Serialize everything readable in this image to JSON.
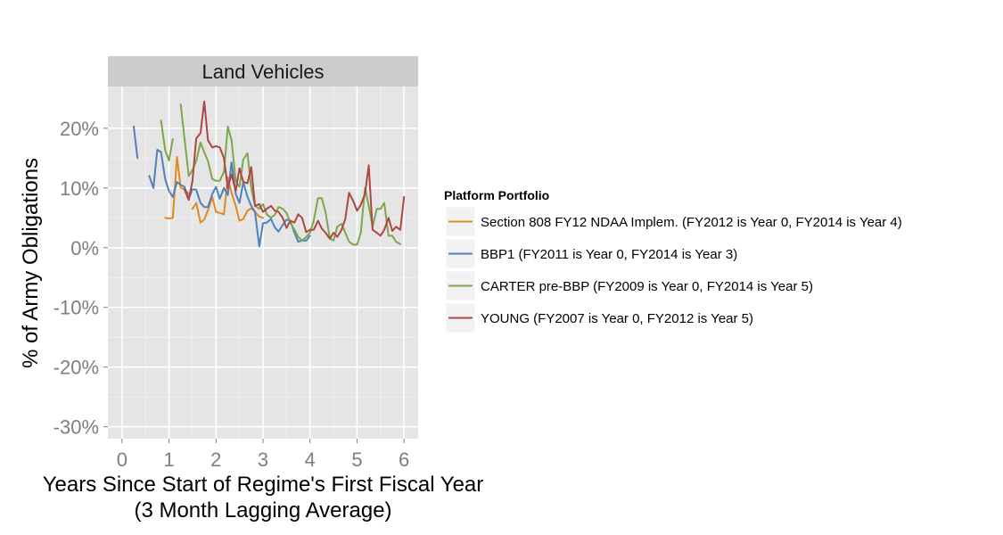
{
  "chart_data": {
    "type": "line",
    "facet_title": "Land Vehicles",
    "xlabel": "Years Since Start of Regime's First Fiscal Year",
    "xlabel_sub": "(3 Month Lagging Average)",
    "ylabel": "% of Army Obligations",
    "xlim": [
      -0.3,
      6.3
    ],
    "ylim": [
      -0.32,
      0.27
    ],
    "x_ticks": [
      0,
      1,
      2,
      3,
      4,
      5,
      6
    ],
    "x_tick_labels": [
      "0",
      "1",
      "2",
      "3",
      "4",
      "5",
      "6"
    ],
    "y_ticks": [
      0.2,
      0.1,
      0.0,
      -0.1,
      -0.2,
      -0.3
    ],
    "y_tick_labels": [
      "20%",
      "10%",
      "0%",
      "-10%",
      "-20%",
      "-30%"
    ],
    "grid": true,
    "legend": {
      "title": "Platform Portfolio",
      "position": "right"
    },
    "series": [
      {
        "name": "Section 808 FY12 NDAA Implem. (FY2012 is Year 0, FY2014 is Year 4)",
        "color": "#e08a1e",
        "segments": [
          [
            [
              0.92,
              0.05
            ],
            [
              1.0,
              0.049
            ],
            [
              1.08,
              0.05
            ],
            [
              1.17,
              0.152
            ],
            [
              1.25,
              0.1
            ],
            [
              1.33,
              0.098
            ],
            [
              1.42,
              0.09
            ]
          ],
          [
            [
              1.5,
              0.065
            ],
            [
              1.58,
              0.075
            ],
            [
              1.67,
              0.042
            ],
            [
              1.75,
              0.047
            ],
            [
              1.83,
              0.063
            ],
            [
              1.92,
              0.085
            ],
            [
              2.0,
              0.06
            ],
            [
              2.08,
              0.058
            ],
            [
              2.17,
              0.056
            ],
            [
              2.25,
              0.118
            ],
            [
              2.33,
              0.092
            ],
            [
              2.42,
              0.07
            ],
            [
              2.5,
              0.045
            ],
            [
              2.58,
              0.048
            ],
            [
              2.67,
              0.062
            ],
            [
              2.75,
              0.066
            ],
            [
              2.83,
              0.06
            ],
            [
              2.92,
              0.052
            ],
            [
              3.0,
              0.05
            ]
          ]
        ]
      },
      {
        "name": "BBP1 (FY2011 is Year 0, FY2014 is Year 3)",
        "color": "#4f81bd",
        "segments": [
          [
            [
              0.25,
              0.203
            ],
            [
              0.33,
              0.15
            ]
          ],
          [
            [
              0.58,
              0.12
            ],
            [
              0.67,
              0.1
            ],
            [
              0.75,
              0.164
            ],
            [
              0.83,
              0.16
            ],
            [
              0.92,
              0.115
            ],
            [
              1.0,
              0.095
            ],
            [
              1.08,
              0.085
            ],
            [
              1.17,
              0.11
            ],
            [
              1.25,
              0.105
            ],
            [
              1.33,
              0.102
            ],
            [
              1.42,
              0.082
            ],
            [
              1.5,
              0.098
            ],
            [
              1.58,
              0.097
            ],
            [
              1.67,
              0.075
            ],
            [
              1.75,
              0.068
            ],
            [
              1.83,
              0.068
            ],
            [
              1.92,
              0.09
            ],
            [
              2.0,
              0.102
            ],
            [
              2.08,
              0.082
            ],
            [
              2.17,
              0.1
            ],
            [
              2.25,
              0.088
            ],
            [
              2.33,
              0.143
            ],
            [
              2.42,
              0.09
            ],
            [
              2.5,
              0.075
            ],
            [
              2.58,
              0.11
            ],
            [
              2.67,
              0.085
            ],
            [
              2.75,
              0.07
            ],
            [
              2.83,
              0.06
            ],
            [
              2.92,
              0.002
            ],
            [
              3.0,
              0.041
            ],
            [
              3.08,
              0.042
            ],
            [
              3.17,
              0.048
            ],
            [
              3.25,
              0.034
            ],
            [
              3.33,
              0.027
            ],
            [
              3.42,
              0.038
            ],
            [
              3.5,
              0.047
            ],
            [
              3.58,
              0.045
            ],
            [
              3.67,
              0.025
            ],
            [
              3.75,
              0.01
            ],
            [
              3.83,
              0.012
            ],
            [
              3.92,
              0.012
            ],
            [
              4.0,
              0.02
            ]
          ]
        ]
      },
      {
        "name": "CARTER pre-BBP (FY2009 is Year 0, FY2014 is Year 5)",
        "color": "#7ea64a",
        "segments": [
          [
            [
              0.83,
              0.213
            ],
            [
              0.92,
              0.163
            ],
            [
              1.0,
              0.146
            ],
            [
              1.08,
              0.182
            ]
          ],
          [
            [
              1.25,
              0.24
            ],
            [
              1.33,
              0.183
            ],
            [
              1.42,
              0.12
            ],
            [
              1.5,
              0.13
            ],
            [
              1.58,
              0.145
            ],
            [
              1.67,
              0.176
            ],
            [
              1.75,
              0.16
            ],
            [
              1.83,
              0.145
            ],
            [
              1.92,
              0.115
            ],
            [
              2.0,
              0.112
            ],
            [
              2.08,
              0.112
            ],
            [
              2.17,
              0.127
            ],
            [
              2.25,
              0.203
            ],
            [
              2.33,
              0.18
            ],
            [
              2.42,
              0.112
            ],
            [
              2.5,
              0.102
            ],
            [
              2.58,
              0.148
            ],
            [
              2.67,
              0.158
            ],
            [
              2.75,
              0.1
            ],
            [
              2.83,
              0.07
            ],
            [
              2.92,
              0.065
            ],
            [
              3.0,
              0.073
            ],
            [
              3.08,
              0.056
            ],
            [
              3.17,
              0.05
            ],
            [
              3.25,
              0.055
            ],
            [
              3.33,
              0.068
            ],
            [
              3.42,
              0.065
            ],
            [
              3.5,
              0.058
            ],
            [
              3.58,
              0.042
            ],
            [
              3.67,
              0.03
            ],
            [
              3.75,
              0.018
            ],
            [
              3.83,
              0.012
            ],
            [
              3.92,
              0.018
            ],
            [
              4.0,
              0.025
            ],
            [
              4.08,
              0.045
            ],
            [
              4.17,
              0.083
            ],
            [
              4.25,
              0.083
            ],
            [
              4.33,
              0.06
            ],
            [
              4.42,
              0.015
            ],
            [
              4.5,
              0.012
            ],
            [
              4.58,
              0.035
            ],
            [
              4.67,
              0.04
            ],
            [
              4.75,
              0.025
            ],
            [
              4.83,
              0.01
            ],
            [
              4.92,
              0.005
            ],
            [
              5.0,
              0.005
            ],
            [
              5.08,
              0.025
            ],
            [
              5.17,
              0.1
            ],
            [
              5.25,
              0.07
            ],
            [
              5.33,
              0.035
            ],
            [
              5.42,
              0.065
            ],
            [
              5.5,
              0.065
            ],
            [
              5.58,
              0.075
            ],
            [
              5.67,
              0.02
            ],
            [
              5.75,
              0.02
            ],
            [
              5.83,
              0.01
            ],
            [
              5.92,
              0.006
            ]
          ]
        ]
      },
      {
        "name": "YOUNG (FY2007 is Year 0, FY2012 is Year 5)",
        "color": "#b04545",
        "segments": [
          [
            [
              1.33,
              0.098
            ],
            [
              1.42,
              0.08
            ],
            [
              1.5,
              0.112
            ],
            [
              1.58,
              0.183
            ],
            [
              1.67,
              0.192
            ],
            [
              1.75,
              0.245
            ],
            [
              1.83,
              0.18
            ],
            [
              1.92,
              0.168
            ],
            [
              2.0,
              0.17
            ],
            [
              2.08,
              0.168
            ],
            [
              2.17,
              0.15
            ],
            [
              2.25,
              0.1
            ],
            [
              2.33,
              0.123
            ],
            [
              2.42,
              0.095
            ],
            [
              2.5,
              0.133
            ],
            [
              2.58,
              0.11
            ],
            [
              2.67,
              0.108
            ],
            [
              2.75,
              0.135
            ],
            [
              2.83,
              0.07
            ],
            [
              2.92,
              0.073
            ],
            [
              3.0,
              0.06
            ],
            [
              3.08,
              0.065
            ],
            [
              3.17,
              0.07
            ],
            [
              3.25,
              0.062
            ],
            [
              3.33,
              0.06
            ],
            [
              3.42,
              0.05
            ],
            [
              3.5,
              0.033
            ],
            [
              3.58,
              0.045
            ],
            [
              3.67,
              0.042
            ],
            [
              3.75,
              0.056
            ],
            [
              3.83,
              0.05
            ],
            [
              3.92,
              0.026
            ],
            [
              4.0,
              0.03
            ],
            [
              4.08,
              0.03
            ],
            [
              4.17,
              0.045
            ],
            [
              4.25,
              0.032
            ],
            [
              4.33,
              0.025
            ],
            [
              4.42,
              0.015
            ],
            [
              4.5,
              0.025
            ],
            [
              4.58,
              0.018
            ],
            [
              4.67,
              0.03
            ],
            [
              4.75,
              0.048
            ],
            [
              4.83,
              0.092
            ],
            [
              4.92,
              0.078
            ],
            [
              5.0,
              0.062
            ],
            [
              5.08,
              0.072
            ],
            [
              5.17,
              0.09
            ],
            [
              5.25,
              0.138
            ],
            [
              5.33,
              0.03
            ],
            [
              5.42,
              0.025
            ],
            [
              5.5,
              0.02
            ],
            [
              5.58,
              0.03
            ],
            [
              5.67,
              0.05
            ],
            [
              5.75,
              0.028
            ],
            [
              5.83,
              0.035
            ],
            [
              5.92,
              0.03
            ],
            [
              6.0,
              0.085
            ]
          ]
        ]
      }
    ]
  }
}
